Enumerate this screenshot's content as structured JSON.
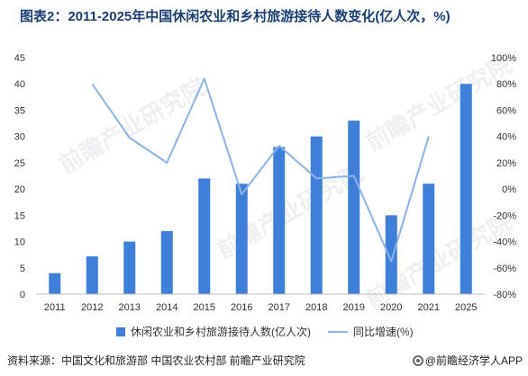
{
  "title": "图表2：2011-2025年中国休闲农业和乡村旅游接待人数变化(亿人次，%)",
  "source": "资料来源：中国文化和旅游部 中国农业农村部 前瞻产业研究院",
  "brand": "@前瞻经济学人APP",
  "watermark": "前瞻产业研究院",
  "colors": {
    "bar": "#3d7fd9",
    "line": "#8db3e6",
    "title": "#1a3e73"
  },
  "chart_data": {
    "type": "bar",
    "categories": [
      "2011",
      "2012",
      "2013",
      "2014",
      "2015",
      "2016",
      "2017",
      "2018",
      "2019",
      "2020",
      "2021",
      "2025"
    ],
    "series": [
      {
        "name": "休闲农业和乡村旅游接待人数(亿人次)",
        "type": "bar",
        "axis": "left",
        "values": [
          4,
          7.2,
          10,
          12,
          22,
          21,
          28,
          30,
          33,
          15,
          21,
          40
        ]
      },
      {
        "name": "同比增速(%)",
        "type": "line",
        "axis": "right",
        "values": [
          null,
          80,
          39,
          20,
          84,
          -4,
          33,
          8,
          10,
          -55,
          40,
          null
        ]
      }
    ],
    "y_left": {
      "min": 0,
      "max": 45,
      "ticks": [
        "0",
        "5",
        "10",
        "15",
        "20",
        "25",
        "30",
        "35",
        "40",
        "45"
      ]
    },
    "y_right": {
      "min": -80,
      "max": 100,
      "ticks": [
        "-80%",
        "-60%",
        "-40%",
        "-20%",
        "0%",
        "20%",
        "40%",
        "60%",
        "80%",
        "100%"
      ]
    },
    "grid": false,
    "legend_position": "bottom"
  }
}
